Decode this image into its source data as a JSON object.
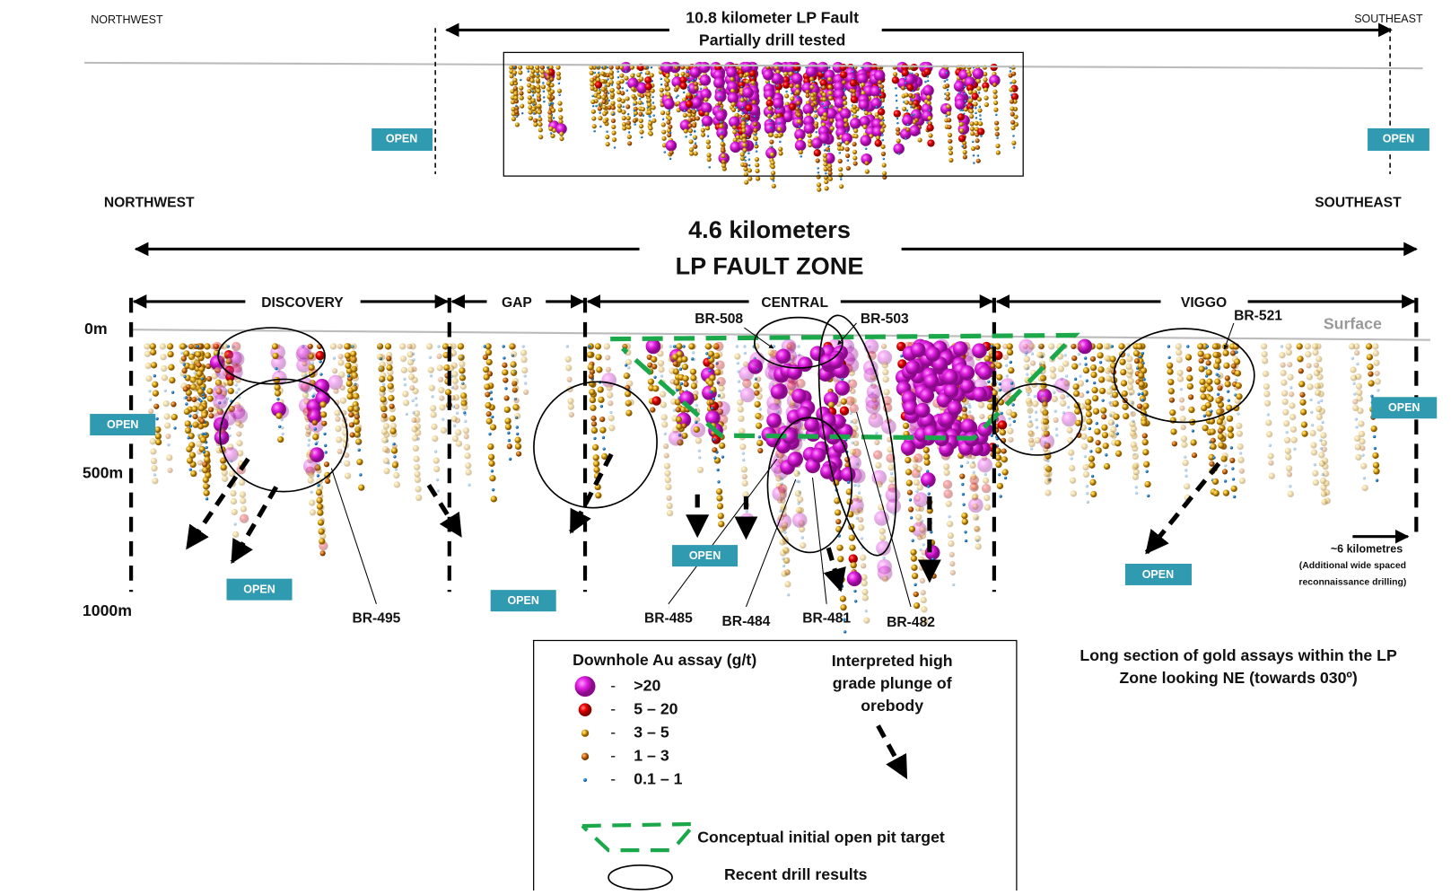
{
  "overview": {
    "northwest": "NORTHWEST",
    "southeast": "SOUTHEAST",
    "title_lines": [
      "10.8 kilometer LP Fault",
      "Partially drill tested"
    ],
    "open_labels": [
      "OPEN",
      "OPEN"
    ]
  },
  "section": {
    "northwest": "NORTHWEST",
    "southeast": "SOUTHEAST",
    "title_lines": [
      "4.6 kilometers",
      "LP FAULT ZONE"
    ],
    "zones": [
      "DISCOVERY",
      "GAP",
      "CENTRAL",
      "VIGGO"
    ],
    "surface": "Surface",
    "depths": [
      "0m",
      "500m",
      "1000m"
    ],
    "holes": [
      "BR-508",
      "BR-503",
      "BR-521",
      "BR-495",
      "BR-485",
      "BR-484",
      "BR-481",
      "BR-482"
    ],
    "open_labels": [
      "OPEN",
      "OPEN",
      "OPEN",
      "OPEN",
      "OPEN",
      "OPEN"
    ],
    "extension_note": [
      "~6 kilometres",
      "(Additional wide spaced",
      "reconnaissance drilling)"
    ]
  },
  "legend": {
    "title": "Downhole Au assay (g/t)",
    "separator": "-",
    "grades": [
      ">20",
      "5 – 20",
      "3 – 5",
      "1 – 3",
      "0.1 – 1"
    ],
    "plunge_lines": [
      "Interpreted high",
      "grade plunge of",
      "orebody"
    ],
    "pit": "Conceptual initial open pit target",
    "recent": "Recent drill results"
  },
  "caption": [
    "Long section of gold assays within the LP",
    "Zone looking NE (towards 030º)"
  ]
}
